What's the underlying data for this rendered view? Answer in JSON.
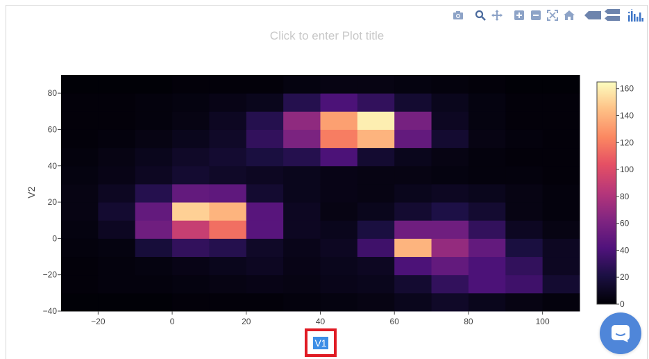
{
  "modebar": {
    "icons": [
      "camera-icon",
      "zoom-icon",
      "pan-icon",
      "zoom-in-icon",
      "zoom-out-icon",
      "autoscale-icon",
      "reset-axes-icon",
      "hover-closest-icon",
      "hover-compare-icon",
      "plotly-logo-icon"
    ],
    "color": "#8da3c7",
    "logo_color": "#3f76c7"
  },
  "chart_data": {
    "type": "heatmap",
    "title": "Click to enter Plot title",
    "xlabel": "V1",
    "ylabel": "V2",
    "x_edges": [
      -30,
      -20,
      -10,
      0,
      10,
      20,
      30,
      40,
      50,
      60,
      70,
      80,
      90,
      100,
      110
    ],
    "y_edges": [
      -40,
      -30,
      -20,
      -10,
      0,
      10,
      20,
      30,
      40,
      50,
      60,
      70,
      80,
      90
    ],
    "xlim": [
      -30,
      110
    ],
    "ylim": [
      -40,
      90
    ],
    "x_ticks": [
      -20,
      0,
      20,
      40,
      60,
      80,
      100
    ],
    "x_tick_labels": [
      "−20",
      "0",
      "20",
      "40",
      "60",
      "80",
      "100"
    ],
    "y_ticks": [
      -40,
      -20,
      0,
      20,
      40,
      60,
      80
    ],
    "y_tick_labels": [
      "−40",
      "−20",
      "0",
      "20",
      "40",
      "60",
      "80"
    ],
    "z": [
      [
        1,
        1,
        1,
        2,
        2,
        2,
        3,
        4,
        5,
        8,
        12,
        8,
        5,
        3
      ],
      [
        2,
        3,
        3,
        4,
        5,
        6,
        5,
        7,
        8,
        15,
        30,
        40,
        35,
        15
      ],
      [
        2,
        3,
        4,
        6,
        8,
        10,
        6,
        8,
        10,
        40,
        50,
        40,
        30,
        10
      ],
      [
        3,
        4,
        18,
        30,
        25,
        12,
        7,
        10,
        35,
        140,
        70,
        50,
        20,
        10
      ],
      [
        4,
        10,
        55,
        90,
        115,
        45,
        10,
        8,
        20,
        55,
        55,
        30,
        10,
        5
      ],
      [
        5,
        15,
        50,
        150,
        140,
        45,
        10,
        5,
        8,
        15,
        22,
        15,
        5,
        3
      ],
      [
        5,
        10,
        25,
        50,
        48,
        15,
        8,
        6,
        5,
        8,
        10,
        8,
        5,
        3
      ],
      [
        4,
        6,
        10,
        15,
        12,
        10,
        8,
        6,
        5,
        5,
        4,
        3,
        3,
        2
      ],
      [
        3,
        5,
        8,
        12,
        15,
        20,
        25,
        40,
        15,
        8,
        5,
        3,
        2,
        2
      ],
      [
        2,
        3,
        5,
        8,
        12,
        30,
        60,
        120,
        140,
        50,
        15,
        5,
        3,
        2
      ],
      [
        2,
        2,
        3,
        5,
        10,
        25,
        68,
        133,
        160,
        58,
        10,
        4,
        2,
        2
      ],
      [
        2,
        2,
        3,
        4,
        6,
        8,
        25,
        40,
        30,
        15,
        8,
        4,
        2,
        2
      ],
      [
        1,
        1,
        1,
        2,
        2,
        2,
        4,
        5,
        5,
        4,
        3,
        2,
        1,
        1
      ]
    ],
    "colorscale": {
      "zmin": 0,
      "zmax": 165,
      "stops": [
        [
          0,
          "#000004"
        ],
        [
          0.13,
          "#1c1044"
        ],
        [
          0.25,
          "#4f127b"
        ],
        [
          0.38,
          "#812581"
        ],
        [
          0.5,
          "#b5367a"
        ],
        [
          0.63,
          "#e55064"
        ],
        [
          0.75,
          "#fb8761"
        ],
        [
          0.88,
          "#fec287"
        ],
        [
          1,
          "#fcfdbf"
        ]
      ]
    },
    "colorbar_ticks": [
      0,
      20,
      40,
      60,
      80,
      100,
      120,
      140,
      160
    ],
    "colorbar_tick_labels": [
      "0",
      "20",
      "40",
      "60",
      "80",
      "100",
      "120",
      "140",
      "160"
    ],
    "legend": "none"
  }
}
